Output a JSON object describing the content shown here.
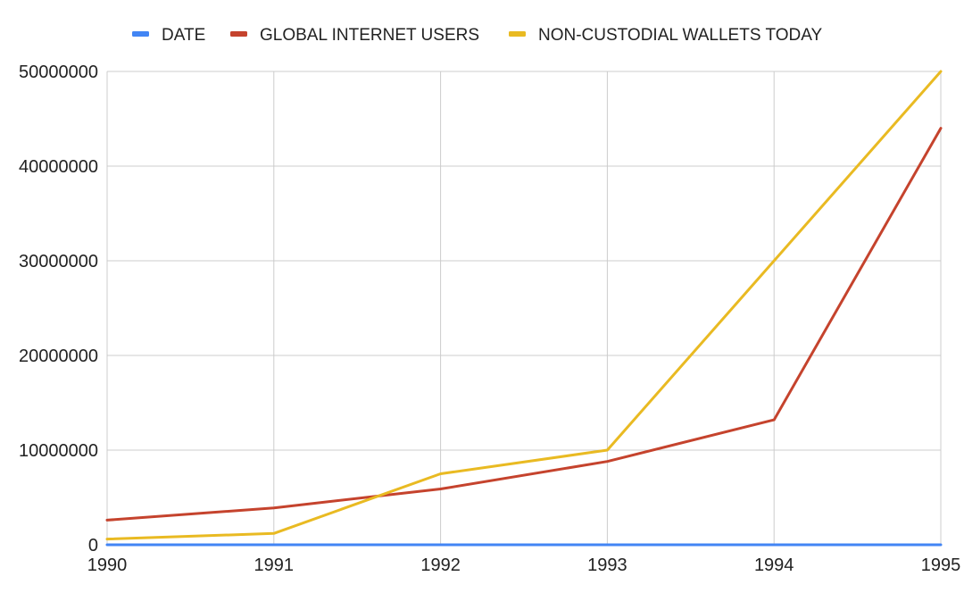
{
  "chart_data": {
    "type": "line",
    "title": "",
    "xlabel": "",
    "ylabel": "",
    "x": [
      1990,
      1991,
      1992,
      1993,
      1994,
      1995
    ],
    "x_tick_labels": [
      "1990",
      "1991",
      "1992",
      "1993",
      "1994",
      "1995"
    ],
    "y_tick_labels": [
      "0",
      "10000000",
      "20000000",
      "30000000",
      "40000000",
      "50000000"
    ],
    "ylim": [
      0,
      50000000
    ],
    "grid": true,
    "legend_position": "top",
    "series": [
      {
        "name": "DATE",
        "color": "#4285F4",
        "values": [
          0,
          0,
          0,
          0,
          0,
          0
        ]
      },
      {
        "name": "GLOBAL INTERNET USERS",
        "color": "#C5432D",
        "values": [
          2600000,
          3900000,
          5900000,
          8800000,
          13200000,
          44000000
        ]
      },
      {
        "name": "NON-CUSTODIAL WALLETS TODAY",
        "color": "#E9BA22",
        "values": [
          600000,
          1200000,
          7500000,
          10000000,
          30000000,
          50000000
        ]
      }
    ]
  }
}
